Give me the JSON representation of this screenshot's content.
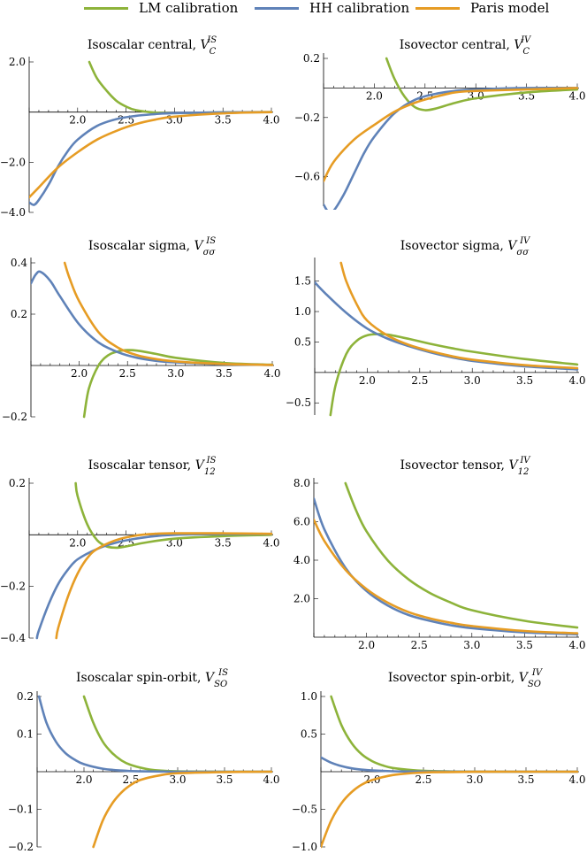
{
  "legend": [
    {
      "name": "LM calibration",
      "color": "#8db33a"
    },
    {
      "name": "HH calibration",
      "color": "#5f82b8"
    },
    {
      "name": "Paris model",
      "color": "#e69c24"
    }
  ],
  "chart_data": [
    {
      "type": "line",
      "title": "Isoscalar central,",
      "symbol": "V",
      "sub": "C",
      "sup": "IS",
      "xlim": [
        1.5,
        4.0
      ],
      "ylim": [
        -4.0,
        2.0
      ],
      "xticks": [
        "2.0",
        "2.5",
        "3.0",
        "3.5",
        "4.0"
      ],
      "yticks": [
        "2.0",
        "−2.0",
        "−4.0"
      ],
      "series": [
        {
          "name": "LM calibration",
          "x": [
            2.12,
            2.2,
            2.3,
            2.4,
            2.5,
            2.6,
            2.8,
            3.0,
            3.5,
            4.0
          ],
          "y": [
            2.0,
            1.35,
            0.85,
            0.45,
            0.22,
            0.08,
            -0.02,
            -0.04,
            -0.01,
            0.0
          ]
        },
        {
          "name": "HH calibration",
          "x": [
            1.5,
            1.55,
            1.6,
            1.7,
            1.8,
            1.9,
            2.0,
            2.2,
            2.4,
            2.6,
            2.8,
            3.0,
            3.5,
            4.0
          ],
          "y": [
            -3.6,
            -3.7,
            -3.5,
            -2.9,
            -2.15,
            -1.55,
            -1.1,
            -0.55,
            -0.28,
            -0.15,
            -0.08,
            -0.04,
            -0.01,
            0.0
          ]
        },
        {
          "name": "Paris model",
          "x": [
            1.5,
            1.6,
            1.8,
            2.0,
            2.2,
            2.4,
            2.6,
            2.8,
            3.0,
            3.5,
            4.0
          ],
          "y": [
            -3.4,
            -3.0,
            -2.2,
            -1.6,
            -1.1,
            -0.75,
            -0.48,
            -0.3,
            -0.18,
            -0.05,
            0.0
          ]
        }
      ]
    },
    {
      "type": "line",
      "title": "Isovector central,",
      "symbol": "V",
      "sub": "C",
      "sup": "IV",
      "xlim": [
        1.5,
        4.0
      ],
      "ylim": [
        -0.8,
        0.2
      ],
      "xticks": [
        "2.0",
        "2.5",
        "3.0",
        "3.5",
        "4.0"
      ],
      "yticks": [
        "0.2",
        "−0.2",
        "−0.6"
      ],
      "series": [
        {
          "name": "LM calibration",
          "x": [
            2.12,
            2.2,
            2.3,
            2.4,
            2.5,
            2.6,
            2.8,
            3.0,
            3.5,
            4.0
          ],
          "y": [
            0.2,
            0.06,
            -0.06,
            -0.13,
            -0.15,
            -0.14,
            -0.1,
            -0.07,
            -0.03,
            -0.01
          ]
        },
        {
          "name": "HH calibration",
          "x": [
            1.5,
            1.55,
            1.6,
            1.7,
            1.8,
            1.9,
            2.0,
            2.2,
            2.4,
            2.6,
            2.8,
            3.0,
            3.5,
            4.0
          ],
          "y": [
            -0.79,
            -0.84,
            -0.83,
            -0.72,
            -0.58,
            -0.44,
            -0.33,
            -0.17,
            -0.08,
            -0.04,
            -0.02,
            -0.01,
            0.0,
            0.0
          ]
        },
        {
          "name": "Paris model",
          "x": [
            1.5,
            1.6,
            1.8,
            2.0,
            2.2,
            2.4,
            2.6,
            2.8,
            3.0,
            3.5,
            4.0
          ],
          "y": [
            -0.63,
            -0.5,
            -0.35,
            -0.25,
            -0.16,
            -0.1,
            -0.06,
            -0.03,
            -0.02,
            -0.01,
            0.0
          ]
        }
      ]
    },
    {
      "type": "line",
      "title": "Isoscalar sigma,",
      "symbol": "V",
      "sub": "σσ",
      "sup": "IS",
      "xlim": [
        1.5,
        4.0
      ],
      "ylim": [
        -0.2,
        0.4
      ],
      "xticks": [
        "2.0",
        "2.5",
        "3.0",
        "3.5",
        "4.0"
      ],
      "yticks": [
        "0.4",
        "0.2",
        "−0.2"
      ],
      "series": [
        {
          "name": "LM calibration",
          "x": [
            2.05,
            2.1,
            2.2,
            2.3,
            2.4,
            2.5,
            2.6,
            2.8,
            3.0,
            3.5,
            4.0
          ],
          "y": [
            -0.2,
            -0.09,
            0.0,
            0.04,
            0.055,
            0.06,
            0.058,
            0.045,
            0.03,
            0.01,
            0.003
          ]
        },
        {
          "name": "HH calibration",
          "x": [
            1.5,
            1.55,
            1.6,
            1.7,
            1.8,
            2.0,
            2.2,
            2.4,
            2.6,
            2.8,
            3.0,
            3.5,
            4.0
          ],
          "y": [
            0.32,
            0.355,
            0.365,
            0.33,
            0.27,
            0.16,
            0.09,
            0.052,
            0.03,
            0.018,
            0.012,
            0.005,
            0.002
          ]
        },
        {
          "name": "Paris model",
          "x": [
            1.85,
            1.9,
            2.0,
            2.2,
            2.4,
            2.6,
            2.8,
            3.0,
            3.5,
            4.0
          ],
          "y": [
            0.4,
            0.34,
            0.25,
            0.13,
            0.07,
            0.04,
            0.025,
            0.016,
            0.006,
            0.002
          ]
        }
      ]
    },
    {
      "type": "line",
      "title": "Isovector sigma,",
      "symbol": "V",
      "sub": "σσ",
      "sup": "IV",
      "xlim": [
        1.5,
        4.0
      ],
      "ylim": [
        -0.7,
        1.8
      ],
      "xticks": [
        "2.0",
        "2.5",
        "3.0",
        "3.5",
        "4.0"
      ],
      "yticks": [
        "1.5",
        "1.0",
        "0.5",
        "−0.5"
      ],
      "series": [
        {
          "name": "LM calibration",
          "x": [
            1.65,
            1.7,
            1.8,
            1.9,
            2.0,
            2.1,
            2.2,
            2.4,
            2.6,
            2.8,
            3.0,
            3.5,
            4.0
          ],
          "y": [
            -0.7,
            -0.2,
            0.3,
            0.52,
            0.61,
            0.63,
            0.62,
            0.55,
            0.47,
            0.4,
            0.34,
            0.22,
            0.13
          ]
        },
        {
          "name": "HH calibration",
          "x": [
            1.5,
            1.6,
            1.8,
            2.0,
            2.2,
            2.4,
            2.6,
            2.8,
            3.0,
            3.5,
            4.0
          ],
          "y": [
            1.48,
            1.3,
            0.98,
            0.72,
            0.55,
            0.43,
            0.33,
            0.25,
            0.19,
            0.1,
            0.05
          ]
        },
        {
          "name": "Paris model",
          "x": [
            1.75,
            1.8,
            1.9,
            2.0,
            2.2,
            2.4,
            2.6,
            2.8,
            3.0,
            3.5,
            4.0
          ],
          "y": [
            1.8,
            1.5,
            1.12,
            0.85,
            0.6,
            0.45,
            0.35,
            0.27,
            0.21,
            0.12,
            0.07
          ]
        }
      ]
    },
    {
      "type": "line",
      "title": "Isoscalar tensor,",
      "symbol": "V",
      "sub": "12",
      "sup": "IS",
      "xlim": [
        1.5,
        4.0
      ],
      "ylim": [
        -0.4,
        0.2
      ],
      "xticks": [
        "2.0",
        "2.5",
        "3.0",
        "3.5",
        "4.0"
      ],
      "yticks": [
        "0.2",
        "−0.2",
        "−0.4"
      ],
      "series": [
        {
          "name": "LM calibration",
          "x": [
            1.98,
            2.0,
            2.1,
            2.2,
            2.3,
            2.4,
            2.5,
            2.7,
            3.0,
            3.5,
            4.0
          ],
          "y": [
            0.2,
            0.15,
            0.04,
            -0.02,
            -0.045,
            -0.05,
            -0.045,
            -0.03,
            -0.015,
            -0.005,
            0.0
          ]
        },
        {
          "name": "HH calibration",
          "x": [
            1.58,
            1.6,
            1.7,
            1.8,
            1.9,
            2.0,
            2.2,
            2.4,
            2.6,
            2.8,
            3.0,
            3.5,
            4.0
          ],
          "y": [
            -0.4,
            -0.37,
            -0.27,
            -0.19,
            -0.135,
            -0.095,
            -0.055,
            -0.03,
            -0.015,
            -0.005,
            0.0,
            0.003,
            0.003
          ]
        },
        {
          "name": "Paris model",
          "x": [
            1.78,
            1.8,
            1.9,
            2.0,
            2.1,
            2.2,
            2.4,
            2.6,
            2.8,
            3.0,
            3.5,
            4.0
          ],
          "y": [
            -0.4,
            -0.36,
            -0.24,
            -0.15,
            -0.09,
            -0.055,
            -0.02,
            -0.003,
            0.004,
            0.006,
            0.006,
            0.004
          ]
        }
      ]
    },
    {
      "type": "line",
      "title": "Isovector tensor,",
      "symbol": "V",
      "sub": "12",
      "sup": "IV",
      "xlim": [
        1.5,
        4.0
      ],
      "ylim": [
        0.0,
        8.0
      ],
      "xticks": [
        "2.0",
        "2.5",
        "3.0",
        "3.5",
        "4.0"
      ],
      "yticks": [
        "8.0",
        "6.0",
        "4.0",
        "2.0"
      ],
      "series": [
        {
          "name": "LM calibration",
          "x": [
            1.8,
            1.9,
            2.0,
            2.2,
            2.4,
            2.6,
            2.8,
            3.0,
            3.5,
            4.0
          ],
          "y": [
            8.0,
            6.6,
            5.5,
            4.0,
            3.0,
            2.3,
            1.8,
            1.4,
            0.85,
            0.5
          ]
        },
        {
          "name": "HH calibration",
          "x": [
            1.5,
            1.6,
            1.8,
            2.0,
            2.2,
            2.4,
            2.6,
            2.8,
            3.0,
            3.5,
            4.0
          ],
          "y": [
            7.2,
            5.6,
            3.6,
            2.4,
            1.65,
            1.15,
            0.85,
            0.62,
            0.47,
            0.25,
            0.15
          ]
        },
        {
          "name": "Paris model",
          "x": [
            1.5,
            1.6,
            1.8,
            2.0,
            2.2,
            2.4,
            2.6,
            2.8,
            3.0,
            3.5,
            4.0
          ],
          "y": [
            6.1,
            5.0,
            3.5,
            2.5,
            1.8,
            1.3,
            0.98,
            0.75,
            0.58,
            0.32,
            0.2
          ]
        }
      ]
    },
    {
      "type": "line",
      "title": "Isoscalar spin-orbit,",
      "symbol": "V",
      "sub": "SO",
      "sup": "IS",
      "xlim": [
        1.5,
        4.0
      ],
      "ylim": [
        -0.2,
        0.2
      ],
      "xticks": [
        "2.0",
        "2.5",
        "3.0",
        "3.5",
        "4.0"
      ],
      "yticks": [
        "0.2",
        "0.1",
        "−0.1",
        "−0.2"
      ],
      "series": [
        {
          "name": "LM calibration",
          "x": [
            2.0,
            2.1,
            2.2,
            2.3,
            2.4,
            2.5,
            2.7,
            3.0,
            3.5,
            4.0
          ],
          "y": [
            0.2,
            0.13,
            0.08,
            0.05,
            0.03,
            0.018,
            0.006,
            0.001,
            0.0,
            0.0
          ]
        },
        {
          "name": "HH calibration",
          "x": [
            1.52,
            1.6,
            1.7,
            1.8,
            1.9,
            2.0,
            2.2,
            2.4,
            2.6,
            3.0,
            3.5,
            4.0
          ],
          "y": [
            0.2,
            0.13,
            0.08,
            0.05,
            0.032,
            0.02,
            0.008,
            0.003,
            0.001,
            0.0,
            0.0,
            0.0
          ]
        },
        {
          "name": "Paris model",
          "x": [
            2.1,
            2.2,
            2.3,
            2.4,
            2.5,
            2.6,
            2.8,
            3.0,
            3.5,
            4.0
          ],
          "y": [
            -0.2,
            -0.13,
            -0.085,
            -0.055,
            -0.035,
            -0.022,
            -0.01,
            -0.004,
            -0.001,
            0.0
          ]
        }
      ]
    },
    {
      "type": "line",
      "title": "Isovector spin-orbit,",
      "symbol": "V",
      "sub": "SO",
      "sup": "IV",
      "xlim": [
        1.5,
        4.0
      ],
      "ylim": [
        -1.0,
        1.0
      ],
      "xticks": [
        "2.0",
        "2.5",
        "3.0",
        "3.5",
        "4.0"
      ],
      "yticks": [
        "1.0",
        "0.5",
        "−0.5",
        "−1.0"
      ],
      "series": [
        {
          "name": "LM calibration",
          "x": [
            1.6,
            1.7,
            1.8,
            1.9,
            2.0,
            2.1,
            2.2,
            2.4,
            2.6,
            3.0,
            3.5,
            4.0
          ],
          "y": [
            1.0,
            0.62,
            0.38,
            0.23,
            0.14,
            0.085,
            0.05,
            0.02,
            0.008,
            0.001,
            0.0,
            0.0
          ]
        },
        {
          "name": "HH calibration",
          "x": [
            1.5,
            1.6,
            1.7,
            1.8,
            1.9,
            2.0,
            2.2,
            2.4,
            3.0,
            4.0
          ],
          "y": [
            0.19,
            0.12,
            0.075,
            0.045,
            0.027,
            0.016,
            0.006,
            0.002,
            0.0,
            0.0
          ]
        },
        {
          "name": "Paris model",
          "x": [
            1.5,
            1.6,
            1.7,
            1.8,
            1.9,
            2.0,
            2.2,
            2.4,
            2.6,
            3.0,
            3.5,
            4.0
          ],
          "y": [
            -1.0,
            -0.65,
            -0.42,
            -0.27,
            -0.17,
            -0.11,
            -0.045,
            -0.018,
            -0.007,
            -0.001,
            0.0,
            0.0
          ]
        }
      ]
    }
  ]
}
